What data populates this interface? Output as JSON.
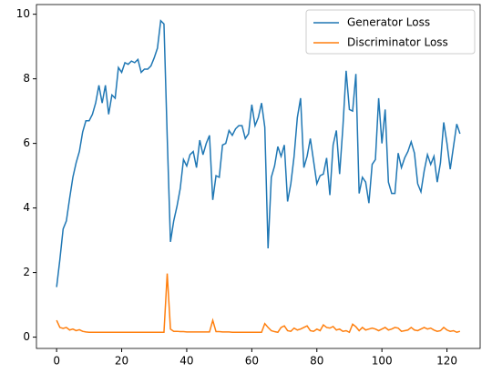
{
  "chart_data": {
    "type": "line",
    "x": [
      0,
      1,
      2,
      3,
      4,
      5,
      6,
      7,
      8,
      9,
      10,
      11,
      12,
      13,
      14,
      15,
      16,
      17,
      18,
      19,
      20,
      21,
      22,
      23,
      24,
      25,
      26,
      27,
      28,
      29,
      30,
      31,
      32,
      33,
      34,
      35,
      36,
      37,
      38,
      39,
      40,
      41,
      42,
      43,
      44,
      45,
      46,
      47,
      48,
      49,
      50,
      51,
      52,
      53,
      54,
      55,
      56,
      57,
      58,
      59,
      60,
      61,
      62,
      63,
      64,
      65,
      66,
      67,
      68,
      69,
      70,
      71,
      72,
      73,
      74,
      75,
      76,
      77,
      78,
      79,
      80,
      81,
      82,
      83,
      84,
      85,
      86,
      87,
      88,
      89,
      90,
      91,
      92,
      93,
      94,
      95,
      96,
      97,
      98,
      99,
      100,
      101,
      102,
      103,
      104,
      105,
      106,
      107,
      108,
      109,
      110,
      111,
      112,
      113,
      114,
      115,
      116,
      117,
      118,
      119,
      120,
      121,
      122,
      123,
      124
    ],
    "series": [
      {
        "name": "Generator Loss",
        "color": "#1f77b4",
        "values": [
          1.55,
          2.4,
          3.35,
          3.6,
          4.3,
          4.95,
          5.4,
          5.75,
          6.35,
          6.7,
          6.7,
          6.9,
          7.25,
          7.8,
          7.25,
          7.8,
          6.9,
          7.5,
          7.4,
          8.35,
          8.2,
          8.5,
          8.45,
          8.55,
          8.5,
          8.6,
          8.2,
          8.3,
          8.3,
          8.4,
          8.65,
          8.95,
          9.8,
          9.7,
          6.2,
          2.95,
          3.6,
          4.05,
          4.6,
          5.5,
          5.3,
          5.65,
          5.75,
          5.25,
          6.1,
          5.65,
          6.0,
          6.25,
          4.25,
          5.0,
          4.95,
          5.95,
          6.0,
          6.4,
          6.25,
          6.45,
          6.55,
          6.55,
          6.15,
          6.3,
          7.2,
          6.55,
          6.8,
          7.25,
          6.5,
          2.75,
          4.95,
          5.3,
          5.9,
          5.6,
          5.95,
          4.2,
          4.75,
          5.6,
          6.8,
          7.4,
          5.25,
          5.6,
          6.15,
          5.45,
          4.75,
          5.0,
          5.05,
          5.55,
          4.4,
          5.95,
          6.4,
          5.05,
          6.5,
          8.25,
          7.05,
          7.0,
          8.15,
          4.45,
          4.95,
          4.8,
          4.15,
          5.35,
          5.5,
          7.4,
          6.0,
          7.05,
          4.8,
          4.45,
          4.45,
          5.7,
          5.25,
          5.55,
          5.75,
          6.05,
          5.7,
          4.75,
          4.5,
          5.15,
          5.65,
          5.35,
          5.6,
          4.8,
          5.4,
          6.65,
          6.0,
          5.2,
          5.9,
          6.6,
          6.3
        ]
      },
      {
        "name": "Discriminator Loss",
        "color": "#ff7f0e",
        "values": [
          0.52,
          0.3,
          0.27,
          0.3,
          0.22,
          0.25,
          0.2,
          0.23,
          0.18,
          0.16,
          0.15,
          0.15,
          0.15,
          0.15,
          0.15,
          0.15,
          0.15,
          0.15,
          0.15,
          0.15,
          0.15,
          0.15,
          0.15,
          0.15,
          0.15,
          0.15,
          0.15,
          0.15,
          0.15,
          0.15,
          0.15,
          0.15,
          0.15,
          0.15,
          1.97,
          0.25,
          0.18,
          0.18,
          0.17,
          0.17,
          0.16,
          0.16,
          0.16,
          0.16,
          0.16,
          0.16,
          0.16,
          0.16,
          0.52,
          0.17,
          0.17,
          0.16,
          0.16,
          0.16,
          0.15,
          0.15,
          0.15,
          0.15,
          0.15,
          0.15,
          0.15,
          0.15,
          0.15,
          0.15,
          0.42,
          0.3,
          0.2,
          0.17,
          0.15,
          0.3,
          0.35,
          0.2,
          0.18,
          0.28,
          0.22,
          0.25,
          0.3,
          0.35,
          0.2,
          0.18,
          0.25,
          0.2,
          0.38,
          0.3,
          0.28,
          0.33,
          0.22,
          0.25,
          0.18,
          0.2,
          0.15,
          0.4,
          0.32,
          0.2,
          0.3,
          0.22,
          0.25,
          0.28,
          0.25,
          0.2,
          0.25,
          0.3,
          0.22,
          0.25,
          0.3,
          0.28,
          0.18,
          0.2,
          0.22,
          0.3,
          0.22,
          0.2,
          0.25,
          0.3,
          0.25,
          0.28,
          0.22,
          0.18,
          0.2,
          0.3,
          0.22,
          0.18,
          0.2,
          0.15,
          0.18
        ]
      }
    ],
    "xlim": [
      -6.2,
      130.2
    ],
    "xticks": [
      0,
      20,
      40,
      60,
      80,
      100,
      120
    ],
    "ylim": [
      -0.35,
      10.3
    ],
    "yticks": [
      0,
      2,
      4,
      6,
      8,
      10
    ],
    "legend": "upper right"
  }
}
